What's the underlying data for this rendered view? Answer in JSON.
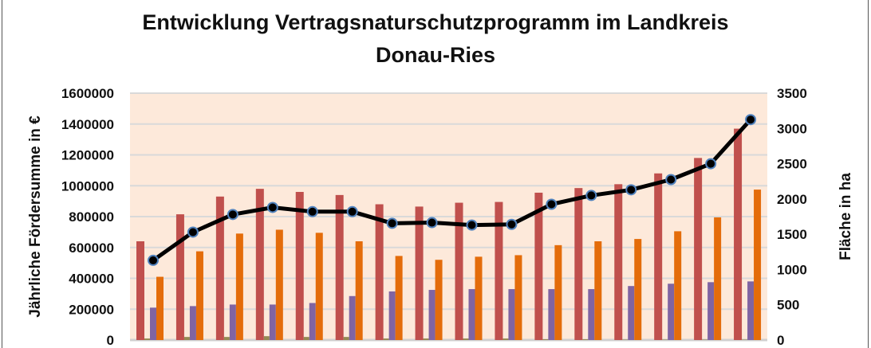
{
  "chart_data": {
    "type": "bar",
    "title": "Entwicklung Vertragsnaturschutzprogramm im Landkreis Donau-Ries",
    "title_lines": [
      "Entwicklung Vertragsnaturschutzprogramm im Landkreis",
      "Donau-Ries"
    ],
    "ylabel": "Jährliche Fördersumme in €",
    "y2label": "Fläche in ha",
    "ylim": [
      0,
      1600000
    ],
    "y2lim": [
      0,
      3500
    ],
    "yticks": [
      "0",
      "200000",
      "400000",
      "600000",
      "800000",
      "1000000",
      "1200000",
      "1400000",
      "1600000"
    ],
    "y2ticks": [
      "0",
      "500",
      "1000",
      "1500",
      "2000",
      "2500",
      "3000",
      "3500"
    ],
    "grid": true,
    "plot_background": "#fde9da",
    "group_count": 16,
    "series": [
      {
        "kind": "bar",
        "axis": "left",
        "color": "#c0504d",
        "values": [
          640000,
          815000,
          930000,
          980000,
          960000,
          940000,
          880000,
          865000,
          890000,
          895000,
          955000,
          985000,
          1010000,
          1080000,
          1180000,
          1370000
        ]
      },
      {
        "kind": "bar",
        "axis": "left",
        "color": "#948a54",
        "values": [
          10000,
          20000,
          20000,
          25000,
          20000,
          20000,
          10000,
          10000,
          10000,
          10000,
          5000,
          5000,
          3000,
          3000,
          3000,
          3000
        ]
      },
      {
        "kind": "bar",
        "axis": "left",
        "color": "#8064a2",
        "values": [
          210000,
          220000,
          230000,
          230000,
          240000,
          285000,
          315000,
          325000,
          330000,
          330000,
          330000,
          330000,
          350000,
          365000,
          375000,
          380000
        ]
      },
      {
        "kind": "bar",
        "axis": "left",
        "color": "#e46c0a",
        "values": [
          410000,
          575000,
          690000,
          715000,
          695000,
          640000,
          545000,
          520000,
          540000,
          550000,
          615000,
          640000,
          655000,
          705000,
          795000,
          975000
        ]
      },
      {
        "kind": "line",
        "axis": "right",
        "color": "#000000",
        "marker_edge": "#4f81bd",
        "values": [
          1130,
          1530,
          1780,
          1880,
          1820,
          1820,
          1655,
          1665,
          1630,
          1640,
          1925,
          2050,
          2130,
          2275,
          2500,
          3125
        ]
      }
    ]
  }
}
